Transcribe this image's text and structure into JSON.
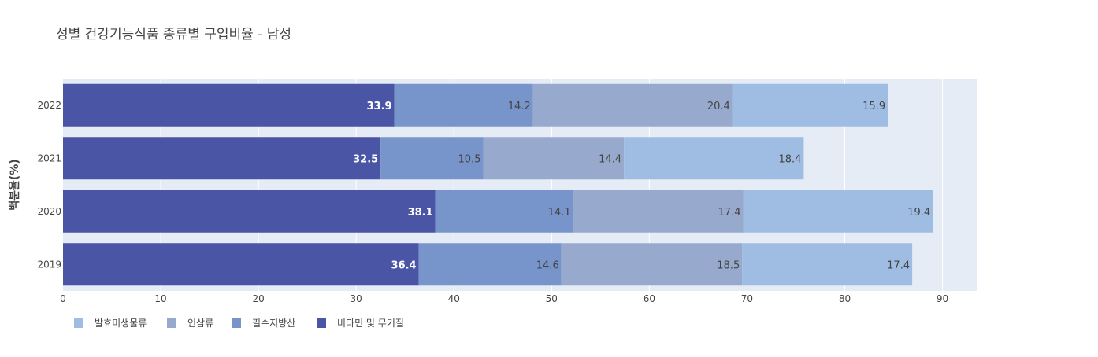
{
  "chart_data": {
    "type": "bar",
    "orientation": "horizontal",
    "barmode": "stack",
    "title": "성별 건강기능식품 종류별 구입비율 - 남성",
    "xlabel": "",
    "ylabel": "백분율(%)",
    "categories": [
      "2019",
      "2020",
      "2021",
      "2022"
    ],
    "xlim": [
      0,
      93.5
    ],
    "xticks": [
      0,
      10,
      20,
      30,
      40,
      50,
      60,
      70,
      80,
      90
    ],
    "grid": true,
    "legend_position": "bottom-left",
    "series": [
      {
        "name": "비타민 및 무기질",
        "color": "#4a55a5",
        "label_color": "#ffffff",
        "values": [
          36.4,
          38.1,
          32.5,
          33.9
        ]
      },
      {
        "name": "필수지방산",
        "color": "#7895cb",
        "label_color": "#444444",
        "values": [
          14.6,
          14.1,
          10.5,
          14.2
        ]
      },
      {
        "name": "인삼류",
        "color": "#97aacd",
        "label_color": "#444444",
        "values": [
          18.5,
          17.4,
          14.4,
          20.4
        ]
      },
      {
        "name": "발효미생물류",
        "color": "#9fbde2",
        "label_color": "#444444",
        "values": [
          17.4,
          19.4,
          18.4,
          15.9
        ]
      }
    ],
    "legend_order": [
      "발효미생물류",
      "인삼류",
      "필수지방산",
      "비타민 및 무기질"
    ]
  }
}
